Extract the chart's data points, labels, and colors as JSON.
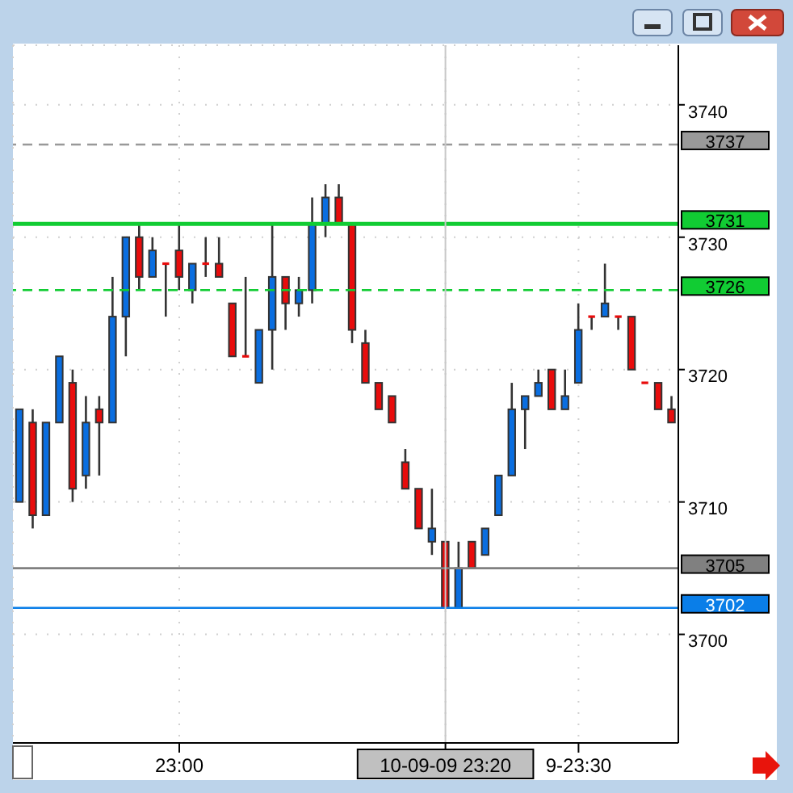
{
  "chart_data": {
    "type": "candlestick",
    "categories": [
      null,
      null,
      null,
      null,
      null,
      null,
      null,
      null,
      null,
      null,
      null,
      null,
      "23:00",
      null,
      null,
      null,
      null,
      null,
      null,
      null,
      null,
      null,
      null,
      null,
      null,
      null,
      null,
      null,
      null,
      null,
      null,
      null,
      "10-09-09 23:20",
      null,
      null,
      null,
      null,
      null,
      null,
      null,
      null,
      null,
      "9-23:30",
      null,
      null,
      null,
      null,
      null,
      null,
      null
    ],
    "ohlc": [
      [
        3710,
        3717,
        3710,
        3717
      ],
      [
        3716,
        3717,
        3708,
        3709
      ],
      [
        3709,
        3716,
        3709,
        3716
      ],
      [
        3716,
        3721,
        3716,
        3721
      ],
      [
        3719,
        3720,
        3710,
        3711
      ],
      [
        3712,
        3718,
        3711,
        3716
      ],
      [
        3717,
        3718,
        3712,
        3716
      ],
      [
        3716,
        3727,
        3716,
        3724
      ],
      [
        3724,
        3730,
        3721,
        3730
      ],
      [
        3730,
        3731,
        3726,
        3727
      ],
      [
        3727,
        3730,
        3727,
        3729
      ],
      [
        3728,
        3728,
        3724,
        3728
      ],
      [
        3729,
        3731,
        3726,
        3727
      ],
      [
        3726,
        3728,
        3725,
        3728
      ],
      [
        3728,
        3730,
        3727,
        3728
      ],
      [
        3728,
        3730,
        3727,
        3727
      ],
      [
        3725,
        3725,
        3721,
        3721
      ],
      [
        3721,
        3727,
        3721,
        3721
      ],
      [
        3719,
        3723,
        3719,
        3723
      ],
      [
        3723,
        3731,
        3720,
        3727
      ],
      [
        3727,
        3727,
        3723,
        3725
      ],
      [
        3725,
        3727,
        3724,
        3726
      ],
      [
        3726,
        3733,
        3725,
        3731
      ],
      [
        3731,
        3734,
        3730,
        3733
      ],
      [
        3733,
        3734,
        3731,
        3731
      ],
      [
        3731,
        3731,
        3722,
        3723
      ],
      [
        3722,
        3723,
        3719,
        3719
      ],
      [
        3719,
        3719,
        3717,
        3717
      ],
      [
        3718,
        3718,
        3716,
        3716
      ],
      [
        3713,
        3714,
        3711,
        3711
      ],
      [
        3711,
        3711,
        3708,
        3708
      ],
      [
        3707,
        3711,
        3706,
        3708
      ],
      [
        3707,
        3707,
        3702,
        3702
      ],
      [
        3702,
        3707,
        3702,
        3705
      ],
      [
        3707,
        3707,
        3705,
        3705
      ],
      [
        3706,
        3708,
        3706,
        3708
      ],
      [
        3709,
        3712,
        3709,
        3712
      ],
      [
        3712,
        3719,
        3712,
        3717
      ],
      [
        3717,
        3718,
        3714,
        3718
      ],
      [
        3718,
        3720,
        3718,
        3719
      ],
      [
        3720,
        3720,
        3717,
        3717
      ],
      [
        3717,
        3720,
        3717,
        3718
      ],
      [
        3719,
        3725,
        3719,
        3723
      ],
      [
        3724,
        3724,
        3723,
        3724
      ],
      [
        3724,
        3728,
        3724,
        3725
      ],
      [
        3724,
        3724,
        3723,
        3724
      ],
      [
        3724,
        3724,
        3720,
        3720
      ],
      [
        3719,
        3719,
        3719,
        3719
      ],
      [
        3719,
        3719,
        3717,
        3717
      ],
      [
        3717,
        3718,
        3716,
        3716
      ]
    ],
    "colors": [
      "#0a6ee0",
      "#e80c0c",
      "#0a6ee0",
      "#0a6ee0",
      "#e80c0c",
      "#0a6ee0",
      "#e80c0c",
      "#0a6ee0",
      "#0a6ee0",
      "#e80c0c",
      "#0a6ee0",
      "#e80c0c",
      "#e80c0c",
      "#0a6ee0",
      "#e80c0c",
      "#e80c0c",
      "#e80c0c",
      "#e80c0c",
      "#0a6ee0",
      "#0a6ee0",
      "#e80c0c",
      "#0a6ee0",
      "#0a6ee0",
      "#0a6ee0",
      "#e80c0c",
      "#e80c0c",
      "#e80c0c",
      "#e80c0c",
      "#e80c0c",
      "#e80c0c",
      "#e80c0c",
      "#0a6ee0",
      "#e80c0c",
      "#0a6ee0",
      "#e80c0c",
      "#0a6ee0",
      "#0a6ee0",
      "#0a6ee0",
      "#0a6ee0",
      "#0a6ee0",
      "#e80c0c",
      "#0a6ee0",
      "#0a6ee0",
      "#e80c0c",
      "#0a6ee0",
      "#e80c0c",
      "#e80c0c",
      "#e80c0c",
      "#e80c0c",
      "#e80c0c"
    ],
    "ylim": [
      3691.8,
      3744.5
    ],
    "yticks": [
      3700,
      3710,
      3720,
      3730,
      3740
    ],
    "grid": true,
    "legend": false,
    "ref_lines": [
      {
        "axis": "y",
        "value": 3737,
        "label": "3737",
        "color": "#999999",
        "line_style": "dashed"
      },
      {
        "axis": "y",
        "value": 3731,
        "label": "3731",
        "color": "#11cc33",
        "line_style": "solid"
      },
      {
        "axis": "y",
        "value": 3726,
        "label": "3726",
        "color": "#11cc33",
        "line_style": "dashed"
      },
      {
        "axis": "y",
        "value": 3705,
        "label": "3705",
        "color": "#808080",
        "line_style": "solid"
      },
      {
        "axis": "y",
        "value": 3702,
        "label": "3702",
        "color": "#0a7ee8",
        "line_style": "solid"
      },
      {
        "axis": "x",
        "value": "10-09-09 23:20",
        "color": "#c8c8c8",
        "line_style": "solid"
      }
    ]
  }
}
